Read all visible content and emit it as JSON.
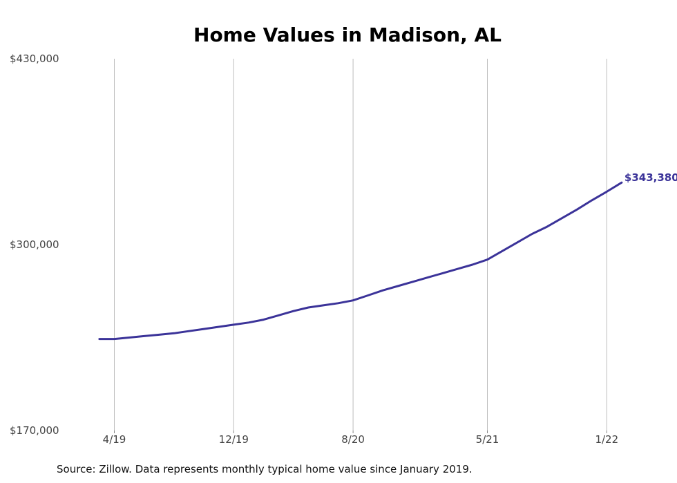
{
  "chart_data": {
    "type": "line",
    "title": "Home Values in Madison, AL",
    "xlabel": "",
    "ylabel": "",
    "source": "Source: Zillow. Data represents monthly typical home value since January 2019.",
    "ylim": [
      170000,
      430000
    ],
    "yticks": [
      170000,
      300000,
      430000
    ],
    "ytick_labels": [
      "$170,000",
      "$300,000",
      "$430,000"
    ],
    "xticks": [
      "2019-04",
      "2019-12",
      "2020-08",
      "2021-05",
      "2022-01"
    ],
    "xtick_labels": [
      "4/19",
      "12/19",
      "8/20",
      "5/21",
      "1/22"
    ],
    "grid": {
      "vertical": true,
      "horizontal": false
    },
    "line_color": "#3b3399",
    "end_label": "$343,380",
    "series": [
      {
        "x": [
          "2019-03",
          "2019-04",
          "2019-05",
          "2019-06",
          "2019-07",
          "2019-08",
          "2019-09",
          "2019-10",
          "2019-11",
          "2019-12",
          "2020-01",
          "2020-02",
          "2020-03",
          "2020-04",
          "2020-05",
          "2020-06",
          "2020-07",
          "2020-08",
          "2020-09",
          "2020-10",
          "2020-11",
          "2020-12",
          "2021-01",
          "2021-02",
          "2021-03",
          "2021-04",
          "2021-05",
          "2021-06",
          "2021-07",
          "2021-08",
          "2021-09",
          "2021-10",
          "2021-11",
          "2021-12",
          "2022-01",
          "2022-02"
        ],
        "values": [
          234000,
          234000,
          235000,
          236000,
          237000,
          238000,
          239500,
          241000,
          242500,
          244000,
          245500,
          247500,
          250500,
          253500,
          256000,
          257500,
          259000,
          261000,
          264500,
          268000,
          271000,
          274000,
          277000,
          280000,
          283000,
          286000,
          289500,
          295500,
          301500,
          307500,
          312500,
          318500,
          324500,
          331000,
          337000,
          343380
        ]
      }
    ]
  }
}
